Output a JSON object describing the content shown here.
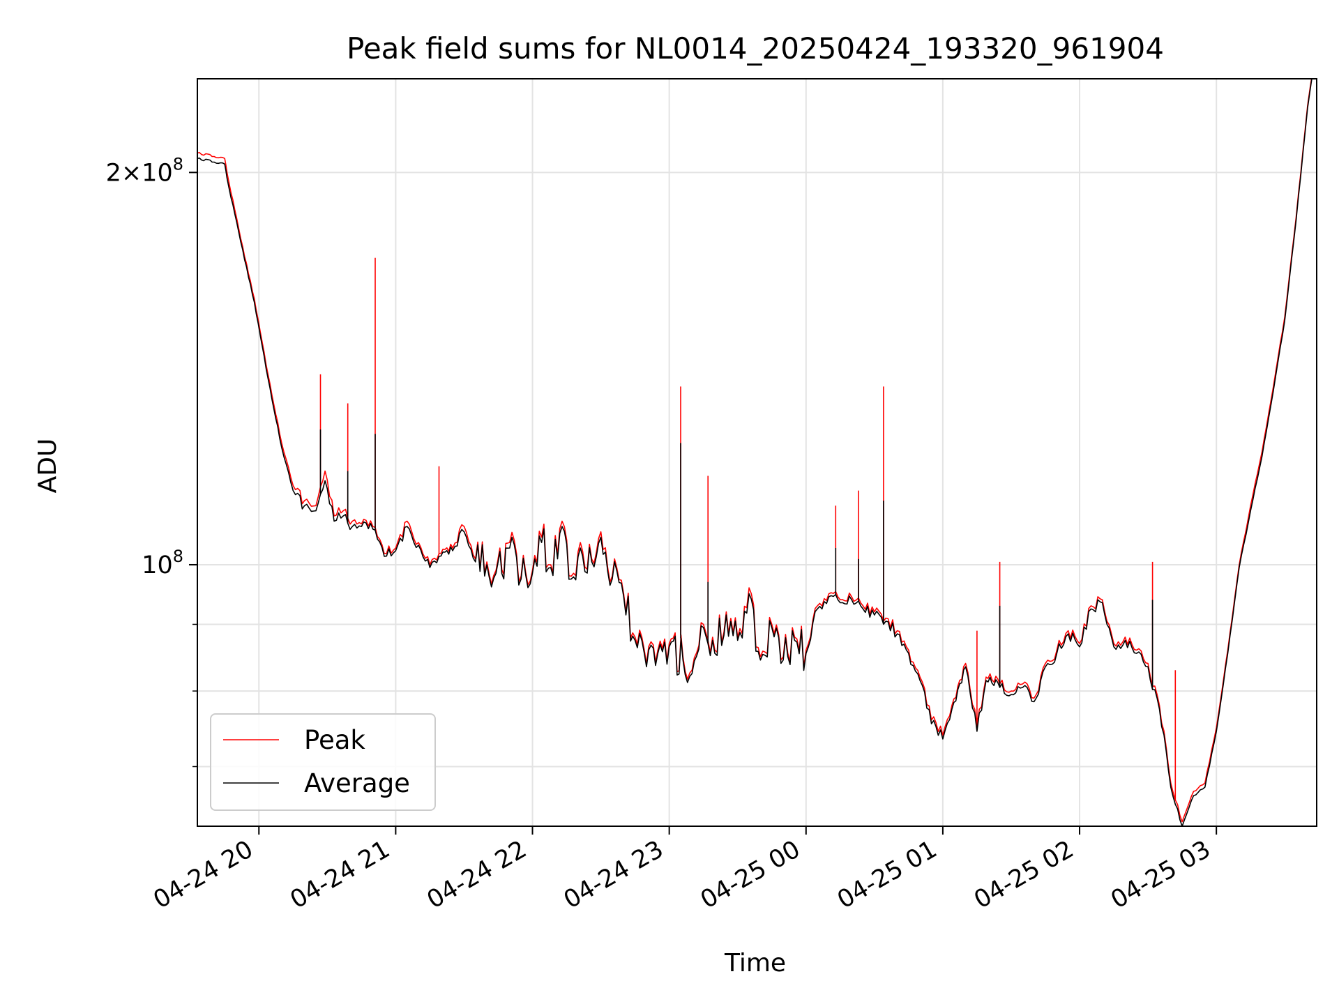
{
  "chart_data": {
    "type": "line",
    "title": "Peak field sums for NL0014_20250424_193320_961904",
    "xlabel": "Time",
    "ylabel": "ADU",
    "y_scale": "log",
    "xlim": [
      "2025-04-24 19:33",
      "2025-04-25 03:44"
    ],
    "ylim": [
      63000000,
      236000000
    ],
    "x_ticks": [
      "04-24 20",
      "04-24 21",
      "04-24 22",
      "04-24 23",
      "04-25 00",
      "04-25 01",
      "04-25 02",
      "04-25 03"
    ],
    "y_major_ticks": [
      {
        "value": 100000000,
        "label_base": "10",
        "label_exp": "8"
      },
      {
        "value": 200000000,
        "label_mant": "2",
        "label_base": "10",
        "label_exp": "8"
      }
    ],
    "y_minor_ticks": [
      70000000,
      80000000,
      90000000
    ],
    "grid": true,
    "legend": {
      "placement": "lower-left"
    },
    "series": [
      {
        "name": "Peak",
        "color": "#ff0000",
        "x": [
          "2025-04-24 19:33",
          "2025-04-24 19:45",
          "2025-04-24 19:46",
          "2025-04-24 19:52",
          "2025-04-24 19:58",
          "2025-04-24 20:04",
          "2025-04-24 20:10",
          "2025-04-24 20:15",
          "2025-04-24 20:20",
          "2025-04-24 20:25",
          "2025-04-24 20:29",
          "2025-04-24 20:33",
          "2025-04-24 20:37",
          "2025-04-24 20:41",
          "2025-04-24 20:45",
          "2025-04-24 20:50",
          "2025-04-24 20:55",
          "2025-04-24 21:00",
          "2025-04-24 21:05",
          "2025-04-24 21:10",
          "2025-04-24 21:15",
          "2025-04-24 21:19",
          "2025-04-24 21:25",
          "2025-04-24 21:30",
          "2025-04-24 21:35",
          "2025-04-24 21:40",
          "2025-04-24 21:44",
          "2025-04-24 21:50",
          "2025-04-24 21:55",
          "2025-04-24 22:00",
          "2025-04-24 22:04",
          "2025-04-24 22:08",
          "2025-04-24 22:13",
          "2025-04-24 22:17",
          "2025-04-24 22:21",
          "2025-04-24 22:26",
          "2025-04-24 22:30",
          "2025-04-24 22:35",
          "2025-04-24 22:40",
          "2025-04-24 22:45",
          "2025-04-24 22:50",
          "2025-04-24 22:55",
          "2025-04-24 23:00",
          "2025-04-24 23:06",
          "2025-04-24 23:10",
          "2025-04-24 23:15",
          "2025-04-24 23:20",
          "2025-04-24 23:25",
          "2025-04-24 23:30",
          "2025-04-24 23:35",
          "2025-04-24 23:40",
          "2025-04-24 23:45",
          "2025-04-24 23:50",
          "2025-04-24 23:55",
          "2025-04-25 00:00",
          "2025-04-25 00:05",
          "2025-04-25 00:10",
          "2025-04-25 00:15",
          "2025-04-25 00:20",
          "2025-04-25 00:25",
          "2025-04-25 00:30",
          "2025-04-25 00:35",
          "2025-04-25 00:40",
          "2025-04-25 00:45",
          "2025-04-25 00:50",
          "2025-04-25 00:55",
          "2025-04-25 01:00",
          "2025-04-25 01:04",
          "2025-04-25 01:10",
          "2025-04-25 01:15",
          "2025-04-25 01:19",
          "2025-04-25 01:25",
          "2025-04-25 01:30",
          "2025-04-25 01:35",
          "2025-04-25 01:40",
          "2025-04-25 01:45",
          "2025-04-25 01:50",
          "2025-04-25 01:55",
          "2025-04-25 02:00",
          "2025-04-25 02:05",
          "2025-04-25 02:10",
          "2025-04-25 02:15",
          "2025-04-25 02:20",
          "2025-04-25 02:25",
          "2025-04-25 02:30",
          "2025-04-25 02:35",
          "2025-04-25 02:40",
          "2025-04-25 02:45",
          "2025-04-25 02:50",
          "2025-04-25 02:55",
          "2025-04-25 03:00",
          "2025-04-25 03:05",
          "2025-04-25 03:10",
          "2025-04-25 03:15",
          "2025-04-25 03:20",
          "2025-04-25 03:25",
          "2025-04-25 03:30",
          "2025-04-25 03:35",
          "2025-04-25 03:40",
          "2025-04-25 03:42"
        ],
        "y": [
          207000000,
          205000000,
          200000000,
          178000000,
          160000000,
          140000000,
          124000000,
          115000000,
          112000000,
          111000000,
          118000000,
          109000000,
          110000000,
          108000000,
          107500000,
          107000000,
          102000000,
          103000000,
          108000000,
          104000000,
          100000000,
          102000000,
          103000000,
          107000000,
          101000000,
          100500000,
          99000000,
          104000000,
          98000000,
          99000000,
          105000000,
          100000000,
          108000000,
          98000000,
          104000000,
          101000000,
          106000000,
          98000000,
          95000000,
          88000000,
          84000000,
          86000000,
          87000000,
          85000000,
          83000000,
          90000000,
          86000000,
          92000000,
          88000000,
          96000000,
          85000000,
          90000000,
          85000000,
          88000000,
          86000000,
          93000000,
          95000000,
          94000000,
          94500000,
          93000000,
          92000000,
          91000000,
          89000000,
          86000000,
          82000000,
          76000000,
          74000000,
          78000000,
          84000000,
          75000000,
          82000000,
          81000000,
          80000000,
          81000000,
          79000000,
          84000000,
          86000000,
          89000000,
          87000000,
          93000000,
          94000000,
          87000000,
          88000000,
          86000000,
          84000000,
          78000000,
          68000000,
          63500000,
          67000000,
          68000000,
          75000000,
          86000000,
          100000000,
          111000000,
          122000000,
          137000000,
          155000000,
          185000000,
          225000000,
          238000000
        ],
        "spikes": [
          {
            "x": "2025-04-24 20:27",
            "y": 140000000
          },
          {
            "x": "2025-04-24 20:39",
            "y": 133000000
          },
          {
            "x": "2025-04-24 20:51",
            "y": 172000000
          },
          {
            "x": "2025-04-24 21:19",
            "y": 119000000
          },
          {
            "x": "2025-04-24 23:05",
            "y": 137000000
          },
          {
            "x": "2025-04-24 23:17",
            "y": 117000000
          },
          {
            "x": "2025-04-25 00:13",
            "y": 111000000
          },
          {
            "x": "2025-04-25 00:23",
            "y": 114000000
          },
          {
            "x": "2025-04-25 00:34",
            "y": 137000000
          },
          {
            "x": "2025-04-25 01:15",
            "y": 89000000
          },
          {
            "x": "2025-04-25 01:25",
            "y": 100500000
          },
          {
            "x": "2025-04-25 02:32",
            "y": 100500000
          },
          {
            "x": "2025-04-25 02:42",
            "y": 83000000
          }
        ]
      },
      {
        "name": "Average",
        "color": "#000000",
        "x": [
          "2025-04-24 19:33",
          "2025-04-24 19:45",
          "2025-04-24 19:46",
          "2025-04-24 19:52",
          "2025-04-24 19:58",
          "2025-04-24 20:04",
          "2025-04-24 20:10",
          "2025-04-24 20:15",
          "2025-04-24 20:20",
          "2025-04-24 20:25",
          "2025-04-24 20:29",
          "2025-04-24 20:33",
          "2025-04-24 20:37",
          "2025-04-24 20:41",
          "2025-04-24 20:45",
          "2025-04-24 20:50",
          "2025-04-24 20:55",
          "2025-04-24 21:00",
          "2025-04-24 21:05",
          "2025-04-24 21:10",
          "2025-04-24 21:15",
          "2025-04-24 21:19",
          "2025-04-24 21:25",
          "2025-04-24 21:30",
          "2025-04-24 21:35",
          "2025-04-24 21:40",
          "2025-04-24 21:44",
          "2025-04-24 21:50",
          "2025-04-24 21:55",
          "2025-04-24 22:00",
          "2025-04-24 22:04",
          "2025-04-24 22:08",
          "2025-04-24 22:13",
          "2025-04-24 22:17",
          "2025-04-24 22:21",
          "2025-04-24 22:26",
          "2025-04-24 22:30",
          "2025-04-24 22:35",
          "2025-04-24 22:40",
          "2025-04-24 22:45",
          "2025-04-24 22:50",
          "2025-04-24 22:55",
          "2025-04-24 23:00",
          "2025-04-24 23:06",
          "2025-04-24 23:10",
          "2025-04-24 23:15",
          "2025-04-24 23:20",
          "2025-04-24 23:25",
          "2025-04-24 23:30",
          "2025-04-24 23:35",
          "2025-04-24 23:40",
          "2025-04-24 23:45",
          "2025-04-24 23:50",
          "2025-04-24 23:55",
          "2025-04-25 00:00",
          "2025-04-25 00:05",
          "2025-04-25 00:10",
          "2025-04-25 00:15",
          "2025-04-25 00:20",
          "2025-04-25 00:25",
          "2025-04-25 00:30",
          "2025-04-25 00:35",
          "2025-04-25 00:40",
          "2025-04-25 00:45",
          "2025-04-25 00:50",
          "2025-04-25 00:55",
          "2025-04-25 01:00",
          "2025-04-25 01:04",
          "2025-04-25 01:10",
          "2025-04-25 01:15",
          "2025-04-25 01:19",
          "2025-04-25 01:25",
          "2025-04-25 01:30",
          "2025-04-25 01:35",
          "2025-04-25 01:40",
          "2025-04-25 01:45",
          "2025-04-25 01:50",
          "2025-04-25 01:55",
          "2025-04-25 02:00",
          "2025-04-25 02:05",
          "2025-04-25 02:10",
          "2025-04-25 02:15",
          "2025-04-25 02:20",
          "2025-04-25 02:25",
          "2025-04-25 02:30",
          "2025-04-25 02:35",
          "2025-04-25 02:40",
          "2025-04-25 02:45",
          "2025-04-25 02:50",
          "2025-04-25 02:55",
          "2025-04-25 03:00",
          "2025-04-25 03:05",
          "2025-04-25 03:10",
          "2025-04-25 03:15",
          "2025-04-25 03:20",
          "2025-04-25 03:25",
          "2025-04-25 03:30",
          "2025-04-25 03:35",
          "2025-04-25 03:40",
          "2025-04-25 03:42"
        ],
        "y": [
          205000000,
          203000000,
          198000000,
          177000000,
          159000000,
          139000000,
          123000000,
          114000000,
          111000000,
          110000000,
          116000000,
          108000000,
          109000000,
          107000000,
          107000000,
          106500000,
          101500000,
          102500000,
          107000000,
          103500000,
          99500000,
          101500000,
          102500000,
          106000000,
          100500000,
          100000000,
          98500000,
          103000000,
          97500000,
          98500000,
          104000000,
          99500000,
          107000000,
          97500000,
          103000000,
          100500000,
          105000000,
          97500000,
          94500000,
          87500000,
          83500000,
          85500000,
          86500000,
          84500000,
          82500000,
          89500000,
          85500000,
          91500000,
          87500000,
          95000000,
          84500000,
          89500000,
          84500000,
          87500000,
          85500000,
          92500000,
          94500000,
          93500000,
          94000000,
          92500000,
          91500000,
          90500000,
          88500000,
          85500000,
          81500000,
          75500000,
          73500000,
          77500000,
          83500000,
          74500000,
          81500000,
          80500000,
          79500000,
          80500000,
          78500000,
          83500000,
          85500000,
          88500000,
          86500000,
          92500000,
          93500000,
          86500000,
          87500000,
          85500000,
          83500000,
          77500000,
          67500000,
          63000000,
          66500000,
          67500000,
          74500000,
          85500000,
          99500000,
          110000000,
          121000000,
          136000000,
          154000000,
          184000000,
          224000000,
          237000000
        ],
        "spikes": [
          {
            "x": "2025-04-24 20:27",
            "y": 127000000
          },
          {
            "x": "2025-04-24 20:39",
            "y": 118000000
          },
          {
            "x": "2025-04-24 20:51",
            "y": 126000000
          },
          {
            "x": "2025-04-24 23:05",
            "y": 124000000
          },
          {
            "x": "2025-04-24 23:17",
            "y": 97000000
          },
          {
            "x": "2025-04-25 00:13",
            "y": 103000000
          },
          {
            "x": "2025-04-25 00:23",
            "y": 101000000
          },
          {
            "x": "2025-04-25 00:34",
            "y": 112000000
          },
          {
            "x": "2025-04-25 01:25",
            "y": 93000000
          },
          {
            "x": "2025-04-25 02:32",
            "y": 94000000
          }
        ]
      }
    ]
  }
}
